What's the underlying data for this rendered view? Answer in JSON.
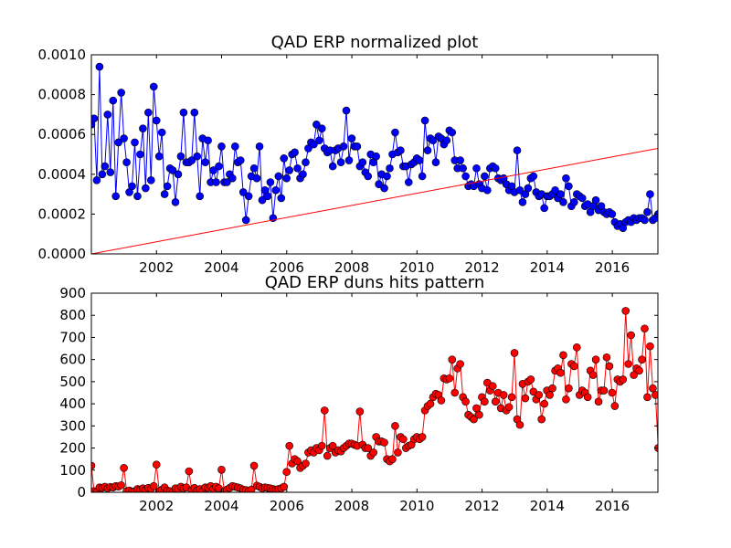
{
  "chart_data": [
    {
      "type": "line",
      "title": "QAD ERP normalized plot",
      "xlabel": "",
      "ylabel": "",
      "xlim": [
        2000.0,
        2017.4
      ],
      "ylim": [
        0.0,
        0.001
      ],
      "x_ticks": [
        2002,
        2004,
        2006,
        2008,
        2010,
        2012,
        2014,
        2016
      ],
      "y_ticks": [
        "0.0000",
        "0.0002",
        "0.0004",
        "0.0006",
        "0.0008",
        "0.0010"
      ],
      "grid": false,
      "series": [
        {
          "color": "#0000ff",
          "marker": "circle",
          "x_start": 2000.0,
          "x_step": 0.0833,
          "values": [
            0.00065,
            0.00068,
            0.00037,
            0.00094,
            0.0004,
            0.00044,
            0.0007,
            0.00041,
            0.00077,
            0.00029,
            0.00056,
            0.00081,
            0.00058,
            0.00046,
            0.00031,
            0.00034,
            0.00056,
            0.00029,
            0.0005,
            0.00063,
            0.00033,
            0.00071,
            0.00037,
            0.00084,
            0.00067,
            0.00049,
            0.00061,
            0.0003,
            0.00034,
            0.00043,
            0.00042,
            0.00026,
            0.0004,
            0.00049,
            0.00071,
            0.00046,
            0.00046,
            0.00047,
            0.00071,
            0.00049,
            0.00029,
            0.00058,
            0.00046,
            0.00057,
            0.00036,
            0.00042,
            0.00036,
            0.00044,
            0.00054,
            0.00036,
            0.00036,
            0.0004,
            0.00038,
            0.00054,
            0.00046,
            0.00047,
            0.00031,
            0.00017,
            0.00029,
            0.00039,
            0.00043,
            0.00038,
            0.00054,
            0.00027,
            0.00032,
            0.00029,
            0.00036,
            0.00018,
            0.00032,
            0.00039,
            0.00028,
            0.00048,
            0.00038,
            0.00042,
            0.0005,
            0.00051,
            0.00043,
            0.00038,
            0.0004,
            0.00046,
            0.00053,
            0.00056,
            0.00055,
            0.00065,
            0.00057,
            0.00063,
            0.00053,
            0.00051,
            0.00052,
            0.00044,
            0.00052,
            0.00053,
            0.00046,
            0.00054,
            0.00072,
            0.00047,
            0.00058,
            0.00054,
            0.00054,
            0.00044,
            0.00046,
            0.00041,
            0.00039,
            0.0005,
            0.00046,
            0.00049,
            0.00035,
            0.0004,
            0.00033,
            0.00039,
            0.00043,
            0.0005,
            0.00061,
            0.00051,
            0.00052,
            0.00044,
            0.00044,
            0.00036,
            0.00045,
            0.00046,
            0.00048,
            0.00047,
            0.00039,
            0.00067,
            0.00052,
            0.00058,
            0.00057,
            0.00046,
            0.00059,
            0.00058,
            0.00055,
            0.00057,
            0.00062,
            0.00061,
            0.00047,
            0.00043,
            0.00047,
            0.00043,
            0.00039,
            0.00034,
            0.00035,
            0.00034,
            0.00043,
            0.00035,
            0.00033,
            0.00039,
            0.00032,
            0.00043,
            0.00044,
            0.00043,
            0.00038,
            0.00037,
            0.00038,
            0.00035,
            0.00032,
            0.00034,
            0.00031,
            0.00052,
            0.00032,
            0.00026,
            0.0003,
            0.00033,
            0.00038,
            0.00039,
            0.00031,
            0.00029,
            0.0003,
            0.00023,
            0.00029,
            0.00029,
            0.0003,
            0.00032,
            0.00028,
            0.0003,
            0.00026,
            0.00038,
            0.00034,
            0.00024,
            0.00026,
            0.0003,
            0.00029,
            0.00028,
            0.00024,
            0.00025,
            0.00021,
            0.00024,
            0.00027,
            0.00022,
            0.00024,
            0.00021,
            0.0002,
            0.00021,
            0.0002,
            0.00016,
            0.00014,
            0.00015,
            0.00013,
            0.00016,
            0.00017,
            0.00016,
            0.00018,
            0.00017,
            0.00018,
            0.00018,
            0.00017,
            0.00021,
            0.0003,
            0.00017,
            0.00018,
            0.0002,
            0.00019,
            0.00016
          ]
        },
        {
          "color": "#ff0000",
          "marker": "none",
          "x": [
            2000.0,
            2017.4
          ],
          "values": [
            0.0,
            0.00053
          ]
        }
      ]
    },
    {
      "type": "line",
      "title": "QAD ERP duns hits pattern",
      "xlabel": "",
      "ylabel": "",
      "xlim": [
        2000.0,
        2017.4
      ],
      "ylim": [
        0,
        900
      ],
      "x_ticks": [
        2002,
        2004,
        2006,
        2008,
        2010,
        2012,
        2014,
        2016
      ],
      "y_ticks": [
        "0",
        "100",
        "200",
        "300",
        "400",
        "500",
        "600",
        "700",
        "800",
        "900"
      ],
      "grid": false,
      "series": [
        {
          "color": "#ff0000",
          "marker": "circle",
          "x_start": 2000.0,
          "x_step": 0.0833,
          "values": [
            120,
            5,
            2,
            22,
            20,
            25,
            18,
            24,
            22,
            28,
            26,
            32,
            110,
            5,
            8,
            3,
            5,
            15,
            12,
            18,
            10,
            20,
            15,
            28,
            125,
            5,
            12,
            22,
            8,
            5,
            2,
            18,
            15,
            25,
            18,
            22,
            95,
            10,
            20,
            8,
            15,
            5,
            22,
            20,
            28,
            15,
            25,
            18,
            102,
            5,
            12,
            20,
            28,
            25,
            22,
            18,
            12,
            10,
            5,
            12,
            120,
            30,
            25,
            18,
            22,
            20,
            18,
            15,
            12,
            15,
            18,
            25,
            92,
            210,
            130,
            150,
            140,
            110,
            120,
            130,
            180,
            190,
            180,
            200,
            190,
            210,
            370,
            165,
            200,
            210,
            180,
            190,
            185,
            200,
            210,
            220,
            220,
            215,
            210,
            365,
            215,
            200,
            200,
            165,
            180,
            250,
            230,
            230,
            225,
            150,
            140,
            150,
            300,
            180,
            250,
            240,
            200,
            210,
            215,
            240,
            250,
            240,
            250,
            370,
            390,
            400,
            430,
            445,
            440,
            415,
            515,
            510,
            515,
            600,
            450,
            560,
            580,
            430,
            410,
            350,
            340,
            330,
            380,
            350,
            430,
            410,
            495,
            460,
            480,
            410,
            450,
            380,
            440,
            370,
            385,
            430,
            630,
            330,
            305,
            490,
            425,
            500,
            510,
            455,
            420,
            440,
            330,
            400,
            460,
            440,
            470,
            550,
            560,
            540,
            620,
            420,
            470,
            580,
            570,
            655,
            440,
            460,
            450,
            430,
            550,
            530,
            600,
            410,
            460,
            460,
            610,
            570,
            450,
            390,
            510,
            500,
            510,
            820,
            580,
            710,
            530,
            560,
            550,
            600,
            740,
            430,
            660,
            470,
            440,
            200
          ]
        }
      ]
    }
  ]
}
